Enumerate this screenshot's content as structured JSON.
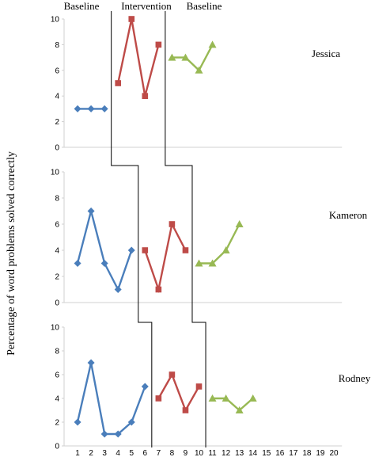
{
  "chart_data": {
    "type": "line",
    "ylabel": "Percentage of word problems solved correctly",
    "phase_labels": [
      "Baseline",
      "Intervention",
      "Baseline"
    ],
    "x_ticks": [
      1,
      2,
      3,
      4,
      5,
      6,
      7,
      8,
      9,
      10,
      11,
      12,
      13,
      14,
      15,
      16,
      17,
      18,
      19,
      20
    ],
    "y_ticks": [
      0,
      2,
      4,
      6,
      8,
      10
    ],
    "ylim": [
      0,
      10
    ],
    "xlim": [
      1,
      20
    ],
    "phase_colors": [
      "#4a7ebb",
      "#be4b48",
      "#98b954"
    ],
    "phase_markers": [
      "diamond",
      "square",
      "triangle"
    ],
    "panels": [
      {
        "student": "Jessica",
        "phases": [
          {
            "x": [
              1,
              2,
              3
            ],
            "y": [
              3,
              3,
              3
            ]
          },
          {
            "x": [
              4,
              5,
              6,
              7
            ],
            "y": [
              5,
              10,
              4,
              8
            ]
          },
          {
            "x": [
              8,
              9,
              10,
              11
            ],
            "y": [
              7,
              7,
              6,
              8
            ]
          }
        ],
        "phase_change_after": [
          3,
          7
        ]
      },
      {
        "student": "Kameron",
        "phases": [
          {
            "x": [
              1,
              2,
              3,
              4,
              5
            ],
            "y": [
              3,
              7,
              3,
              1,
              4
            ]
          },
          {
            "x": [
              6,
              7,
              8,
              9
            ],
            "y": [
              4,
              1,
              6,
              4
            ]
          },
          {
            "x": [
              10,
              11,
              12,
              13
            ],
            "y": [
              3,
              3,
              4,
              6
            ]
          }
        ],
        "phase_change_after": [
          5,
          9
        ]
      },
      {
        "student": "Rodney",
        "phases": [
          {
            "x": [
              1,
              2,
              3,
              4,
              5,
              6
            ],
            "y": [
              2,
              7,
              1,
              1,
              2,
              5
            ]
          },
          {
            "x": [
              7,
              8,
              9,
              10
            ],
            "y": [
              4,
              6,
              3,
              5
            ]
          },
          {
            "x": [
              11,
              12,
              13,
              14
            ],
            "y": [
              4,
              4,
              3,
              4
            ]
          }
        ],
        "phase_change_after": [
          6,
          10
        ]
      }
    ]
  }
}
